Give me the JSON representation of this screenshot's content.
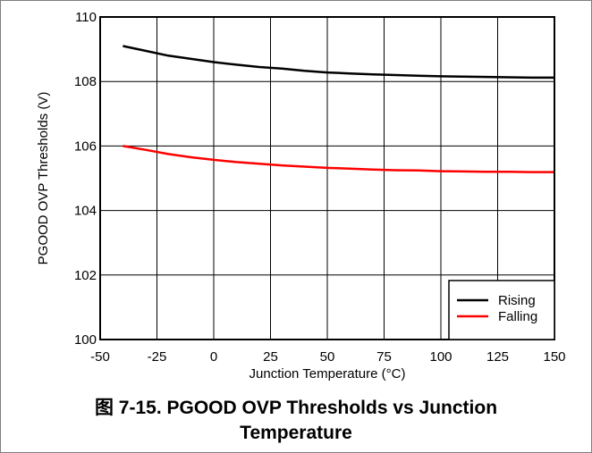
{
  "caption": {
    "line1": "图 7-15. PGOOD OVP Thresholds vs Junction",
    "line2": "Temperature"
  },
  "chart_data": {
    "type": "line",
    "title": "",
    "xlabel": "Junction Temperature (°C)",
    "ylabel": "PGOOD OVP Thresholds (V)",
    "xlim": [
      -50,
      150
    ],
    "ylim": [
      100,
      110
    ],
    "xticks": [
      -50,
      -25,
      0,
      25,
      50,
      75,
      100,
      125,
      150
    ],
    "yticks": [
      100,
      102,
      104,
      106,
      108,
      110
    ],
    "grid": true,
    "legend_position": "bottom-right",
    "series": [
      {
        "name": "Rising",
        "color": "#000000",
        "x": [
          -40,
          -30,
          -20,
          -10,
          0,
          10,
          20,
          30,
          40,
          50,
          60,
          70,
          80,
          90,
          100,
          110,
          120,
          130,
          140,
          150
        ],
        "y": [
          109.1,
          108.95,
          108.8,
          108.7,
          108.6,
          108.52,
          108.45,
          108.4,
          108.33,
          108.28,
          108.25,
          108.22,
          108.2,
          108.18,
          108.16,
          108.15,
          108.14,
          108.13,
          108.12,
          108.12
        ]
      },
      {
        "name": "Falling",
        "color": "#ff0000",
        "x": [
          -40,
          -30,
          -20,
          -10,
          0,
          10,
          20,
          30,
          40,
          50,
          60,
          70,
          80,
          90,
          100,
          110,
          120,
          130,
          140,
          150
        ],
        "y": [
          106.0,
          105.88,
          105.75,
          105.65,
          105.57,
          105.5,
          105.45,
          105.4,
          105.36,
          105.32,
          105.3,
          105.27,
          105.25,
          105.24,
          105.22,
          105.21,
          105.2,
          105.2,
          105.19,
          105.19
        ]
      }
    ]
  }
}
